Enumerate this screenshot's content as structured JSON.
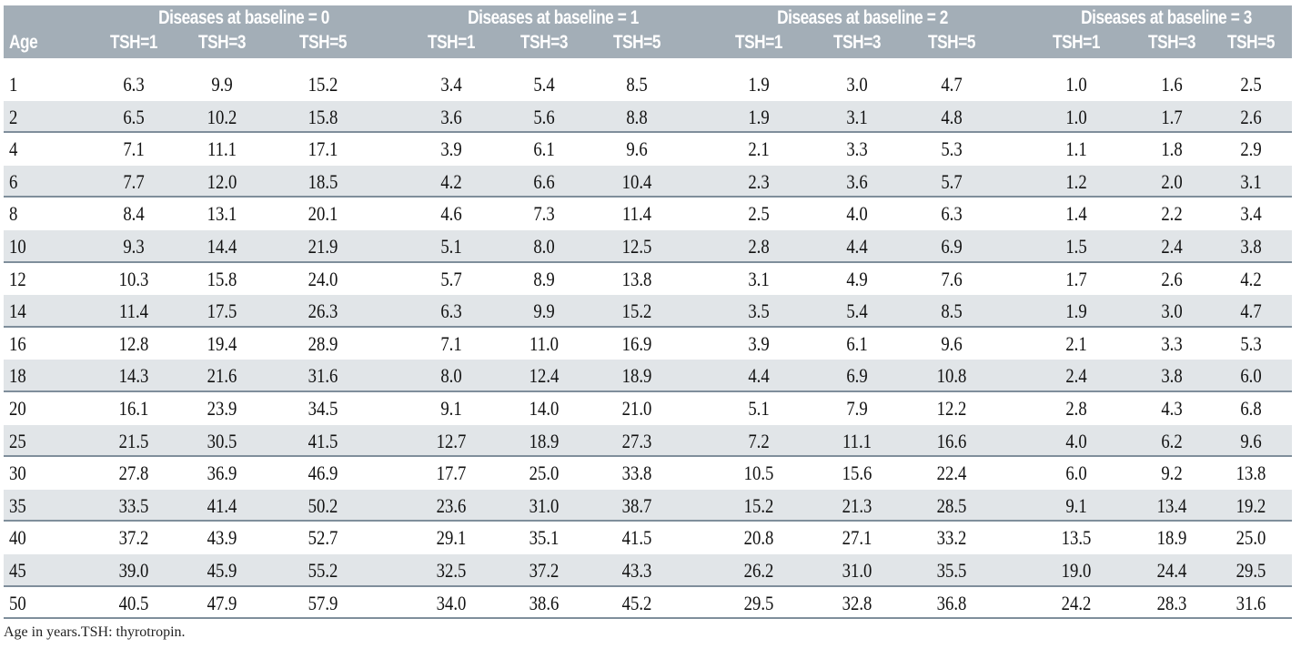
{
  "header": {
    "age": "Age",
    "groups": [
      "Diseases at baseline = 0",
      "Diseases at baseline = 1",
      "Diseases at baseline = 2",
      "Diseases at baseline = 3"
    ],
    "sub": [
      "TSH=1",
      "TSH=3",
      "TSH=5"
    ]
  },
  "rows": [
    [
      "1",
      "6.3",
      "9.9",
      "15.2",
      "3.4",
      "5.4",
      "8.5",
      "1.9",
      "3.0",
      "4.7",
      "1.0",
      "1.6",
      "2.5"
    ],
    [
      "2",
      "6.5",
      "10.2",
      "15.8",
      "3.6",
      "5.6",
      "8.8",
      "1.9",
      "3.1",
      "4.8",
      "1.0",
      "1.7",
      "2.6"
    ],
    [
      "4",
      "7.1",
      "11.1",
      "17.1",
      "3.9",
      "6.1",
      "9.6",
      "2.1",
      "3.3",
      "5.3",
      "1.1",
      "1.8",
      "2.9"
    ],
    [
      "6",
      "7.7",
      "12.0",
      "18.5",
      "4.2",
      "6.6",
      "10.4",
      "2.3",
      "3.6",
      "5.7",
      "1.2",
      "2.0",
      "3.1"
    ],
    [
      "8",
      "8.4",
      "13.1",
      "20.1",
      "4.6",
      "7.3",
      "11.4",
      "2.5",
      "4.0",
      "6.3",
      "1.4",
      "2.2",
      "3.4"
    ],
    [
      "10",
      "9.3",
      "14.4",
      "21.9",
      "5.1",
      "8.0",
      "12.5",
      "2.8",
      "4.4",
      "6.9",
      "1.5",
      "2.4",
      "3.8"
    ],
    [
      "12",
      "10.3",
      "15.8",
      "24.0",
      "5.7",
      "8.9",
      "13.8",
      "3.1",
      "4.9",
      "7.6",
      "1.7",
      "2.6",
      "4.2"
    ],
    [
      "14",
      "11.4",
      "17.5",
      "26.3",
      "6.3",
      "9.9",
      "15.2",
      "3.5",
      "5.4",
      "8.5",
      "1.9",
      "3.0",
      "4.7"
    ],
    [
      "16",
      "12.8",
      "19.4",
      "28.9",
      "7.1",
      "11.0",
      "16.9",
      "3.9",
      "6.1",
      "9.6",
      "2.1",
      "3.3",
      "5.3"
    ],
    [
      "18",
      "14.3",
      "21.6",
      "31.6",
      "8.0",
      "12.4",
      "18.9",
      "4.4",
      "6.9",
      "10.8",
      "2.4",
      "3.8",
      "6.0"
    ],
    [
      "20",
      "16.1",
      "23.9",
      "34.5",
      "9.1",
      "14.0",
      "21.0",
      "5.1",
      "7.9",
      "12.2",
      "2.8",
      "4.3",
      "6.8"
    ],
    [
      "25",
      "21.5",
      "30.5",
      "41.5",
      "12.7",
      "18.9",
      "27.3",
      "7.2",
      "11.1",
      "16.6",
      "4.0",
      "6.2",
      "9.6"
    ],
    [
      "30",
      "27.8",
      "36.9",
      "46.9",
      "17.7",
      "25.0",
      "33.8",
      "10.5",
      "15.6",
      "22.4",
      "6.0",
      "9.2",
      "13.8"
    ],
    [
      "35",
      "33.5",
      "41.4",
      "50.2",
      "23.6",
      "31.0",
      "38.7",
      "15.2",
      "21.3",
      "28.5",
      "9.1",
      "13.4",
      "19.2"
    ],
    [
      "40",
      "37.2",
      "43.9",
      "52.7",
      "29.1",
      "35.1",
      "41.5",
      "20.8",
      "27.1",
      "33.2",
      "13.5",
      "18.9",
      "25.0"
    ],
    [
      "45",
      "39.0",
      "45.9",
      "55.2",
      "32.5",
      "37.2",
      "43.3",
      "26.2",
      "31.0",
      "35.5",
      "19.0",
      "24.4",
      "29.5"
    ],
    [
      "50",
      "40.5",
      "47.9",
      "57.9",
      "34.0",
      "38.6",
      "45.2",
      "29.5",
      "32.8",
      "36.8",
      "24.2",
      "28.3",
      "31.6"
    ]
  ],
  "footnote": "Age in years.TSH: thyrotropin.",
  "colors": {
    "header_bg": "#a3aeb7",
    "stripe": "#e1e5e8",
    "rule": "#7f8e9b"
  }
}
